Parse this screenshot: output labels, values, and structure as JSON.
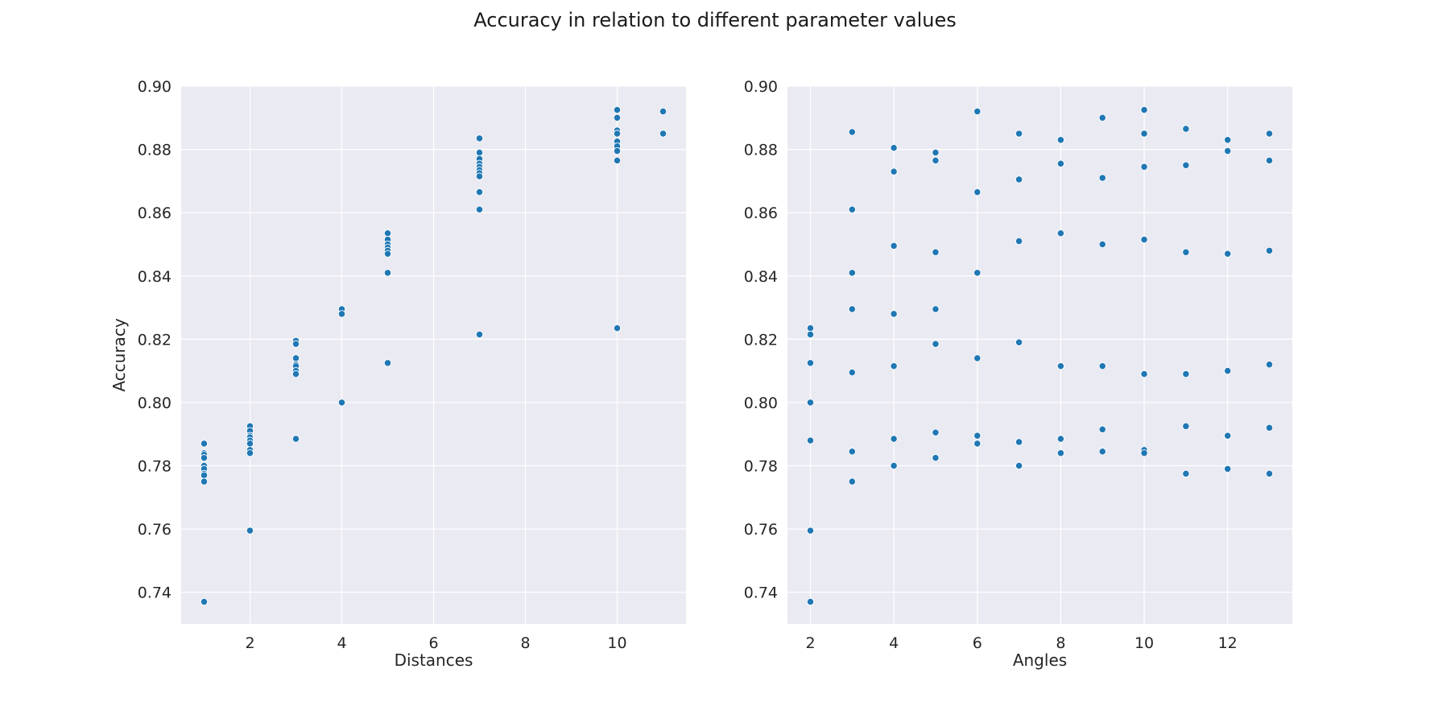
{
  "figure": {
    "title": "Accuracy in relation to different parameter values"
  },
  "chart_data": [
    {
      "type": "scatter",
      "title": "",
      "xlabel": "Distances",
      "ylabel": "Accuracy",
      "xlim": [
        0.5,
        11.5
      ],
      "ylim": [
        0.73,
        0.9
      ],
      "xticks": [
        2,
        4,
        6,
        8,
        10
      ],
      "yticks": [
        0.74,
        0.76,
        0.78,
        0.8,
        0.82,
        0.84,
        0.86,
        0.88,
        0.9
      ],
      "grid": true,
      "color": "#1f77b4",
      "background": "#eaeaf2",
      "points": [
        [
          1,
          0.787
        ],
        [
          1,
          0.784
        ],
        [
          1,
          0.7835
        ],
        [
          1,
          0.7825
        ],
        [
          1,
          0.78
        ],
        [
          1,
          0.779
        ],
        [
          1,
          0.7775
        ],
        [
          1,
          0.777
        ],
        [
          1,
          0.775
        ],
        [
          1,
          0.737
        ],
        [
          2,
          0.7925
        ],
        [
          2,
          0.791
        ],
        [
          2,
          0.7895
        ],
        [
          2,
          0.789
        ],
        [
          2,
          0.788
        ],
        [
          2,
          0.787
        ],
        [
          2,
          0.785
        ],
        [
          2,
          0.784
        ],
        [
          2,
          0.7595
        ],
        [
          3,
          0.8195
        ],
        [
          3,
          0.8185
        ],
        [
          3,
          0.814
        ],
        [
          3,
          0.812
        ],
        [
          3,
          0.8115
        ],
        [
          3,
          0.81
        ],
        [
          3,
          0.809
        ],
        [
          3,
          0.7885
        ],
        [
          4,
          0.8295
        ],
        [
          4,
          0.828
        ],
        [
          4,
          0.8
        ],
        [
          5,
          0.8535
        ],
        [
          5,
          0.8515
        ],
        [
          5,
          0.85
        ],
        [
          5,
          0.849
        ],
        [
          5,
          0.848
        ],
        [
          5,
          0.847
        ],
        [
          5,
          0.841
        ],
        [
          5,
          0.8125
        ],
        [
          7,
          0.8835
        ],
        [
          7,
          0.879
        ],
        [
          7,
          0.877
        ],
        [
          7,
          0.8755
        ],
        [
          7,
          0.8745
        ],
        [
          7,
          0.8735
        ],
        [
          7,
          0.8725
        ],
        [
          7,
          0.8715
        ],
        [
          7,
          0.8665
        ],
        [
          7,
          0.861
        ],
        [
          7,
          0.8215
        ],
        [
          10,
          0.8925
        ],
        [
          10,
          0.89
        ],
        [
          10,
          0.886
        ],
        [
          10,
          0.885
        ],
        [
          10,
          0.8825
        ],
        [
          10,
          0.881
        ],
        [
          10,
          0.8795
        ],
        [
          10,
          0.8765
        ],
        [
          10,
          0.8235
        ],
        [
          11,
          0.892
        ],
        [
          11,
          0.885
        ]
      ]
    },
    {
      "type": "scatter",
      "title": "",
      "xlabel": "Angles",
      "ylabel": "",
      "xlim": [
        1.45,
        13.55
      ],
      "ylim": [
        0.73,
        0.9
      ],
      "xticks": [
        2,
        4,
        6,
        8,
        10,
        12
      ],
      "yticks": [
        0.74,
        0.76,
        0.78,
        0.8,
        0.82,
        0.84,
        0.86,
        0.88,
        0.9
      ],
      "grid": true,
      "color": "#1f77b4",
      "background": "#eaeaf2",
      "points": [
        [
          2,
          0.8235
        ],
        [
          2,
          0.8215
        ],
        [
          2,
          0.8125
        ],
        [
          2,
          0.8
        ],
        [
          2,
          0.788
        ],
        [
          2,
          0.7595
        ],
        [
          2,
          0.737
        ],
        [
          3,
          0.8855
        ],
        [
          3,
          0.861
        ],
        [
          3,
          0.841
        ],
        [
          3,
          0.8295
        ],
        [
          3,
          0.8095
        ],
        [
          3,
          0.7845
        ],
        [
          3,
          0.775
        ],
        [
          4,
          0.8805
        ],
        [
          4,
          0.873
        ],
        [
          4,
          0.8495
        ],
        [
          4,
          0.828
        ],
        [
          4,
          0.8115
        ],
        [
          4,
          0.7885
        ],
        [
          4,
          0.78
        ],
        [
          5,
          0.879
        ],
        [
          5,
          0.8765
        ],
        [
          5,
          0.8475
        ],
        [
          5,
          0.8295
        ],
        [
          5,
          0.8185
        ],
        [
          5,
          0.7905
        ],
        [
          5,
          0.7825
        ],
        [
          6,
          0.892
        ],
        [
          6,
          0.8665
        ],
        [
          6,
          0.841
        ],
        [
          6,
          0.814
        ],
        [
          6,
          0.7895
        ],
        [
          6,
          0.787
        ],
        [
          7,
          0.885
        ],
        [
          7,
          0.8705
        ],
        [
          7,
          0.851
        ],
        [
          7,
          0.819
        ],
        [
          7,
          0.7875
        ],
        [
          7,
          0.78
        ],
        [
          8,
          0.883
        ],
        [
          8,
          0.8755
        ],
        [
          8,
          0.8535
        ],
        [
          8,
          0.8115
        ],
        [
          8,
          0.7885
        ],
        [
          8,
          0.784
        ],
        [
          9,
          0.89
        ],
        [
          9,
          0.871
        ],
        [
          9,
          0.85
        ],
        [
          9,
          0.8115
        ],
        [
          9,
          0.7915
        ],
        [
          9,
          0.7845
        ],
        [
          10,
          0.8925
        ],
        [
          10,
          0.885
        ],
        [
          10,
          0.8745
        ],
        [
          10,
          0.8515
        ],
        [
          10,
          0.809
        ],
        [
          10,
          0.785
        ],
        [
          10,
          0.784
        ],
        [
          11,
          0.8865
        ],
        [
          11,
          0.875
        ],
        [
          11,
          0.8475
        ],
        [
          11,
          0.809
        ],
        [
          11,
          0.7925
        ],
        [
          11,
          0.7775
        ],
        [
          12,
          0.883
        ],
        [
          12,
          0.8795
        ],
        [
          12,
          0.847
        ],
        [
          12,
          0.81
        ],
        [
          12,
          0.7895
        ],
        [
          12,
          0.779
        ],
        [
          13,
          0.885
        ],
        [
          13,
          0.8765
        ],
        [
          13,
          0.848
        ],
        [
          13,
          0.812
        ],
        [
          13,
          0.792
        ],
        [
          13,
          0.7775
        ]
      ]
    }
  ]
}
